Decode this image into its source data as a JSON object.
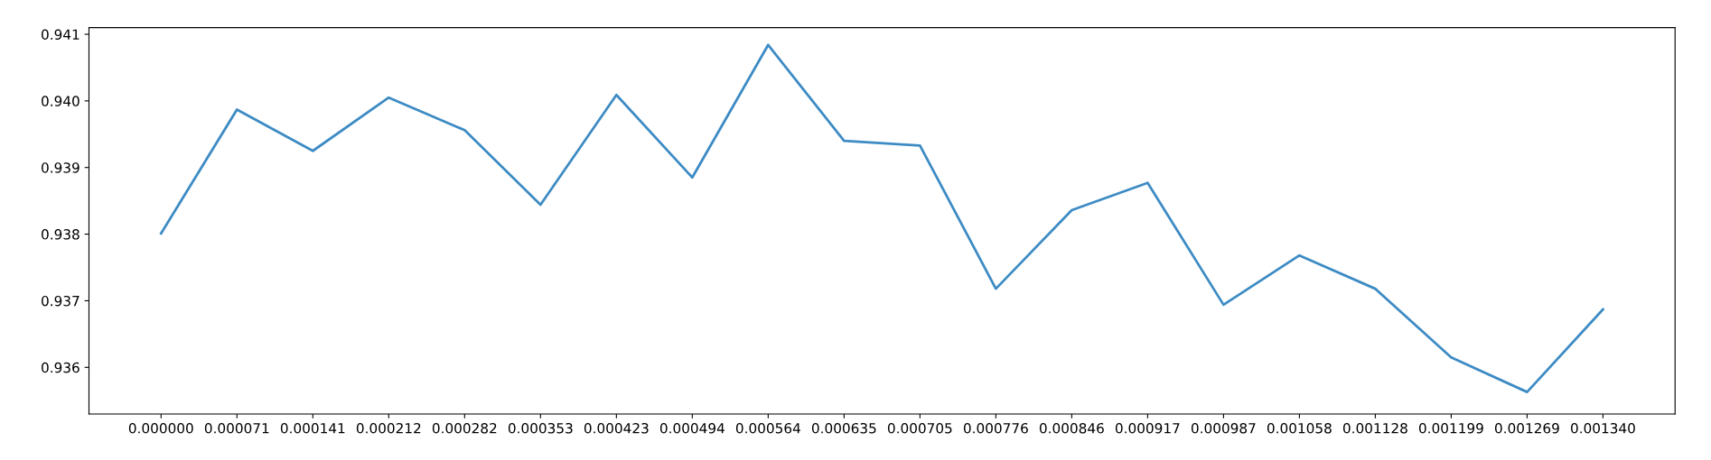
{
  "chart_data": {
    "type": "line",
    "categories": [
      "0.000000",
      "0.000071",
      "0.000141",
      "0.000212",
      "0.000282",
      "0.000353",
      "0.000423",
      "0.000494",
      "0.000564",
      "0.000635",
      "0.000705",
      "0.000776",
      "0.000846",
      "0.000917",
      "0.000987",
      "0.001058",
      "0.001128",
      "0.001199",
      "0.001269",
      "0.001340"
    ],
    "series": [
      {
        "color": "#3d8bc4",
        "values": [
          0.93801,
          0.93987,
          0.93925,
          0.94005,
          0.93956,
          0.93844,
          0.94009,
          0.93885,
          0.94084,
          0.9394,
          0.93933,
          0.93718,
          0.93836,
          0.93877,
          0.93694,
          0.93768,
          0.93718,
          0.93615,
          0.93563,
          0.93687
        ]
      }
    ],
    "ylim": [
      0.9353,
      0.9411
    ],
    "yticks": [
      {
        "value": 0.936,
        "label": "0.936"
      },
      {
        "value": 0.937,
        "label": "0.937"
      },
      {
        "value": 0.938,
        "label": "0.938"
      },
      {
        "value": 0.939,
        "label": "0.939"
      },
      {
        "value": 0.94,
        "label": "0.940"
      },
      {
        "value": 0.941,
        "label": "0.941"
      }
    ],
    "grid": false,
    "legend": false
  }
}
